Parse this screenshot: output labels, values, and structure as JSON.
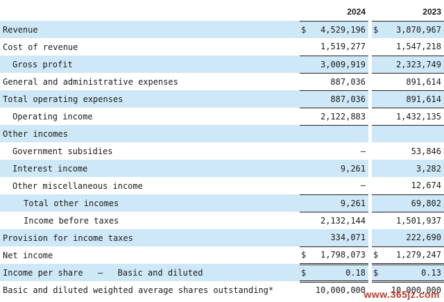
{
  "header": {
    "year1": "2024",
    "year2": "2023"
  },
  "currency_symbol": "$",
  "rows": {
    "revenue": {
      "label": "Revenue",
      "v2024": "4,529,196",
      "v2023": "3,870,967"
    },
    "cost_of_revenue": {
      "label": "Cost of revenue",
      "v2024": "1,519,277",
      "v2023": "1,547,218"
    },
    "gross_profit": {
      "label": "Gross profit",
      "v2024": "3,009,919",
      "v2023": "2,323,749"
    },
    "g_and_a": {
      "label": "General and administrative expenses",
      "v2024": "887,036",
      "v2023": "891,614"
    },
    "total_opex": {
      "label": "Total operating expenses",
      "v2024": "887,036",
      "v2023": "891,614"
    },
    "operating_income": {
      "label": "Operating income",
      "v2024": "2,122,883",
      "v2023": "1,432,135"
    },
    "other_incomes": {
      "label": "Other incomes",
      "v2024": "",
      "v2023": ""
    },
    "gov_subsidies": {
      "label": "Government subsidies",
      "v2024": "—",
      "v2023": "53,846"
    },
    "interest_income": {
      "label": "Interest income",
      "v2024": "9,261",
      "v2023": "3,282"
    },
    "other_misc": {
      "label": "Other miscellaneous income",
      "v2024": "—",
      "v2023": "12,674"
    },
    "total_other": {
      "label": "Total other incomes",
      "v2024": "9,261",
      "v2023": "69,802"
    },
    "income_before_taxes": {
      "label": "Income before taxes",
      "v2024": "2,132,144",
      "v2023": "1,501,937"
    },
    "provision_taxes": {
      "label": "Provision for income taxes",
      "v2024": "334,071",
      "v2023": "222,690"
    },
    "net_income": {
      "label": "Net income",
      "v2024": "1,798,073",
      "v2023": "1,279,247"
    },
    "eps": {
      "label_a": "Income per share",
      "dash": "–",
      "label_b": "Basic and diluted",
      "v2024": "0.18",
      "v2023": "0.13"
    },
    "shares": {
      "label": "Basic and diluted weighted average shares outstanding*",
      "v2024": "10,000,000",
      "v2023": "10,000,000"
    }
  },
  "watermark": "www.365jz.com"
}
